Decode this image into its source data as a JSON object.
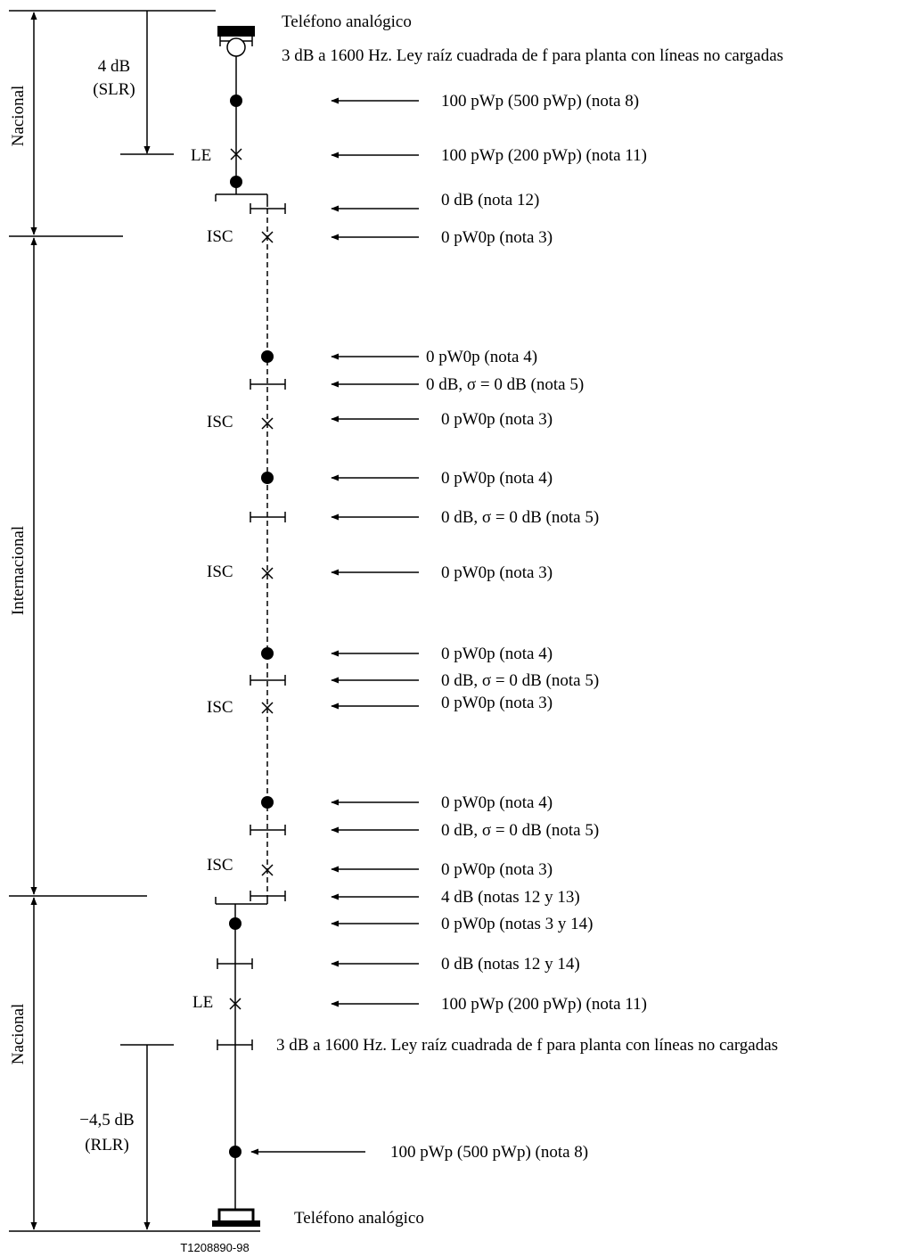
{
  "sections": {
    "nacional_top": "Nacional",
    "internacional": "Internacional",
    "nacional_bottom": "Nacional"
  },
  "loudness": {
    "slr_value": "4 dB",
    "slr_label": "(SLR)",
    "rlr_value": "−4,5 dB",
    "rlr_label": "(RLR)"
  },
  "nodes": {
    "le": "LE",
    "isc": "ISC"
  },
  "telephone_label": "Teléfono analógico",
  "line_loss_label": "3 dB a 1600 Hz. Ley raíz cuadrada de f para planta con líneas no cargadas",
  "annotations": [
    "100 pWp (500 pWp) (nota 8)",
    "100 pWp (200 pWp) (nota 11)",
    "0 dB (nota 12)",
    "0 pW0p (nota 3)",
    "0 pW0p (nota 4)",
    "0 dB, σ = 0 dB (nota 5)",
    "0 pW0p (nota 3)",
    "0 pW0p (nota 4)",
    "0 dB, σ = 0 dB (nota 5)",
    "0 pW0p (nota 3)",
    "0 pW0p (nota 4)",
    "0 dB, σ = 0 dB (nota 5)",
    "0 pW0p (nota 3)",
    "0 pW0p (nota 4)",
    "0 dB, σ = 0 dB (nota 5)",
    "0 pW0p (nota 3)",
    "4 dB (notas 12 y 13)",
    "0 pW0p (notas 3 y 14)",
    "0 dB (notas 12 y 14)",
    "100 pWp (200 pWp) (nota 11)",
    "100 pWp (500 pWp) (nota 8)"
  ],
  "figure_id": "T1208890-98"
}
